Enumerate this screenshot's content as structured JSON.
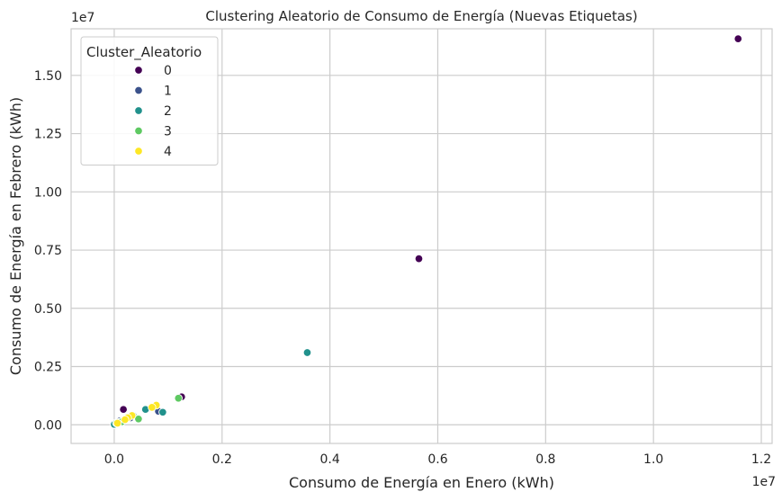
{
  "chart_data": {
    "type": "scatter",
    "title": "Clustering Aleatorio de Consumo de Energía (Nuevas Etiquetas)",
    "xlabel": "Consumo de Energía en Enero (kWh)",
    "ylabel": "Consumo de Energía en Febrero (kWh)",
    "x_offset_label": "1e7",
    "y_offset_label": "1e7",
    "xlim": [
      -0.08,
      1.22
    ],
    "ylim": [
      -0.08,
      1.7
    ],
    "x_ticks": [
      0.0,
      0.2,
      0.4,
      0.6,
      0.8,
      1.0,
      1.2
    ],
    "x_tick_labels": [
      "0.0",
      "0.2",
      "0.4",
      "0.6",
      "0.8",
      "1.0",
      "1.2"
    ],
    "y_ticks": [
      0.0,
      0.25,
      0.5,
      0.75,
      1.0,
      1.25,
      1.5
    ],
    "y_tick_labels": [
      "0.00",
      "0.25",
      "0.50",
      "0.75",
      "1.00",
      "1.25",
      "1.50"
    ],
    "grid": true,
    "legend": {
      "title": "Cluster_Aleatorio",
      "placement": "top-left"
    },
    "series": [
      {
        "name": "0",
        "color": "#440154",
        "points": [
          [
            1.157,
            1.657
          ],
          [
            0.565,
            0.713
          ],
          [
            0.125,
            0.12
          ],
          [
            0.017,
            0.066
          ],
          [
            0.012,
            0.018
          ],
          [
            0.01,
            0.012
          ],
          [
            0.003,
            0.004
          ]
        ]
      },
      {
        "name": "1",
        "color": "#3b528b",
        "points": [
          [
            0.082,
            0.058
          ],
          [
            0.01,
            0.016
          ],
          [
            0.005,
            0.008
          ],
          [
            0.003,
            0.006
          ],
          [
            0.0,
            0.0
          ],
          [
            0.03,
            0.03
          ],
          [
            0.018,
            0.02
          ]
        ]
      },
      {
        "name": "2",
        "color": "#21918c",
        "points": [
          [
            0.358,
            0.31
          ],
          [
            0.09,
            0.054
          ],
          [
            0.058,
            0.066
          ],
          [
            0.0,
            0.002
          ],
          [
            0.035,
            0.04
          ],
          [
            0.008,
            0.01
          ]
        ]
      },
      {
        "name": "3",
        "color": "#5ec962",
        "points": [
          [
            0.119,
            0.114
          ],
          [
            0.045,
            0.025
          ],
          [
            0.021,
            0.023
          ],
          [
            0.014,
            0.013
          ],
          [
            0.004,
            0.008
          ]
        ]
      },
      {
        "name": "4",
        "color": "#fde725",
        "points": [
          [
            0.078,
            0.084
          ],
          [
            0.07,
            0.075
          ],
          [
            0.033,
            0.04
          ],
          [
            0.025,
            0.03
          ],
          [
            0.02,
            0.022
          ],
          [
            0.006,
            0.007
          ]
        ]
      }
    ]
  }
}
